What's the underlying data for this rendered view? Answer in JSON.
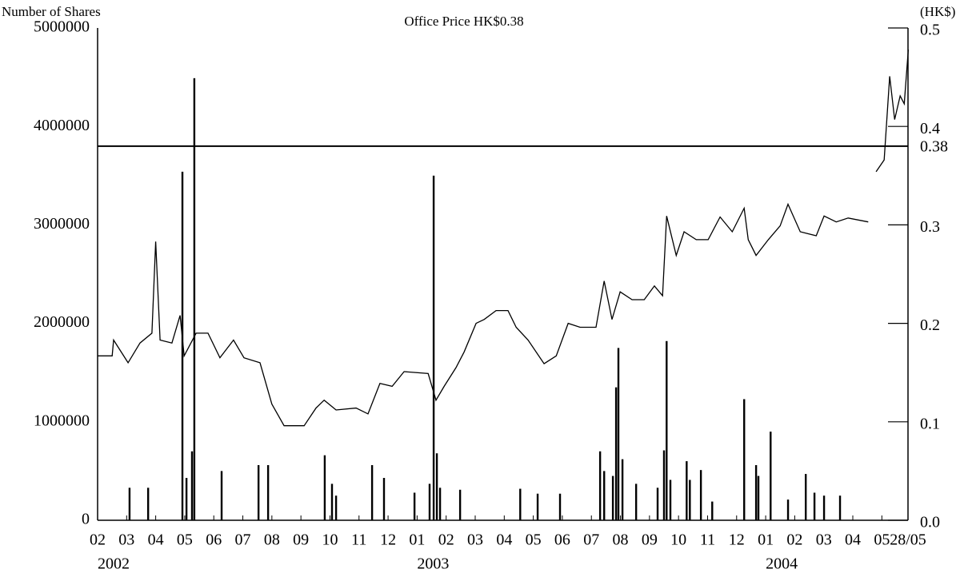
{
  "chart_data": {
    "type": "combo",
    "annotation": "Office Price HK$0.38",
    "y_label": "Number of Shares",
    "y2_label": "(HK$)",
    "xlim": [
      0,
      27.9
    ],
    "xticks": [
      {
        "value": 0,
        "label": "02"
      },
      {
        "value": 1,
        "label": "03"
      },
      {
        "value": 2,
        "label": "04"
      },
      {
        "value": 3,
        "label": "05"
      },
      {
        "value": 4,
        "label": "06"
      },
      {
        "value": 5,
        "label": "07"
      },
      {
        "value": 6,
        "label": "08"
      },
      {
        "value": 7,
        "label": "09"
      },
      {
        "value": 8,
        "label": "10"
      },
      {
        "value": 9,
        "label": "11"
      },
      {
        "value": 10,
        "label": "12"
      },
      {
        "value": 11,
        "label": "01"
      },
      {
        "value": 12,
        "label": "02"
      },
      {
        "value": 13,
        "label": "03"
      },
      {
        "value": 14,
        "label": "04"
      },
      {
        "value": 15,
        "label": "05"
      },
      {
        "value": 16,
        "label": "06"
      },
      {
        "value": 17,
        "label": "07"
      },
      {
        "value": 18,
        "label": "08"
      },
      {
        "value": 19,
        "label": "09"
      },
      {
        "value": 20,
        "label": "10"
      },
      {
        "value": 21,
        "label": "11"
      },
      {
        "value": 22,
        "label": "12"
      },
      {
        "value": 23,
        "label": "01"
      },
      {
        "value": 24,
        "label": "02"
      },
      {
        "value": 25,
        "label": "03"
      },
      {
        "value": 26,
        "label": "04"
      },
      {
        "value": 27,
        "label": "05"
      },
      {
        "value": 27.9,
        "label": "28/05"
      }
    ],
    "x_year_labels": [
      {
        "value": 0,
        "label": "2002"
      },
      {
        "value": 11,
        "label": "2003"
      },
      {
        "value": 23,
        "label": "2004"
      }
    ],
    "ylim": [
      0,
      5000000
    ],
    "yticks": [
      0,
      1000000,
      2000000,
      3000000,
      4000000,
      5000000
    ],
    "y2lim": [
      0,
      0.5
    ],
    "y2ticks": [
      {
        "value": 0,
        "label": "0.0"
      },
      0.1,
      0.2,
      0.3,
      0.4,
      0.5
    ],
    "reference_line": {
      "value": 0.38,
      "axis": "y2"
    },
    "series": [
      {
        "type": "bar",
        "color": "#000000",
        "x": [
          1.1,
          1.74,
          2.92,
          3.06,
          3.25,
          3.33,
          4.27,
          5.54,
          5.87,
          7.82,
          8.07,
          8.21,
          9.45,
          9.86,
          10.91,
          11.43,
          11.57,
          11.68,
          11.79,
          12.48,
          14.55,
          15.15,
          15.92,
          17.3,
          17.44,
          17.74,
          17.85,
          17.93,
          18.07,
          18.54,
          19.28,
          19.5,
          19.59,
          19.72,
          20.28,
          20.39,
          20.77,
          21.16,
          22.26,
          22.67,
          22.75,
          23.17,
          23.77,
          24.38,
          24.68,
          25.01,
          25.56
        ],
        "values": [
          330000,
          330000,
          3540000,
          430000,
          700000,
          4490000,
          500000,
          560000,
          560000,
          660000,
          370000,
          250000,
          560000,
          430000,
          280000,
          370000,
          3500000,
          680000,
          330000,
          310000,
          320000,
          270000,
          270000,
          700000,
          500000,
          450000,
          1350000,
          1750000,
          620000,
          370000,
          330000,
          710000,
          1820000,
          410000,
          600000,
          410000,
          510000,
          190000,
          1230000,
          560000,
          450000,
          900000,
          210000,
          470000,
          280000,
          250000,
          250000
        ]
      },
      {
        "type": "line",
        "axis": "y2",
        "color": "#000000",
        "x": [
          0,
          0.5,
          0.55,
          1.05,
          1.46,
          1.87,
          2.0,
          2.15,
          2.56,
          2.84,
          2.98,
          3.39,
          3.8,
          4.21,
          4.68,
          5.04,
          5.59,
          6.0,
          6.42,
          7.11,
          7.52,
          7.8,
          8.21,
          8.9,
          9.31,
          9.72,
          10.14,
          10.55,
          11.38,
          11.65,
          11.93,
          12.34,
          12.62,
          13.03,
          13.31,
          13.72,
          14.13,
          14.41,
          14.82,
          15.37,
          15.79,
          16.2,
          16.61,
          17.16,
          17.44,
          17.71,
          17.99,
          18.4,
          18.82,
          19.17,
          19.45,
          19.59,
          19.92,
          20.19,
          20.61,
          21.02,
          21.43,
          21.85,
          22.26,
          22.4,
          22.67,
          23.09,
          23.5,
          23.77,
          24.19,
          24.74,
          25.01,
          25.43,
          25.84,
          26.53,
          26.7,
          26.8,
          27.08,
          27.27,
          27.44,
          27.63,
          27.77,
          27.91
        ],
        "values": [
          0.167,
          0.167,
          0.183,
          0.16,
          0.18,
          0.19,
          0.283,
          0.183,
          0.18,
          0.208,
          0.167,
          0.19,
          0.19,
          0.165,
          0.183,
          0.165,
          0.16,
          0.118,
          0.096,
          0.096,
          0.114,
          0.122,
          0.112,
          0.114,
          0.108,
          0.139,
          0.136,
          0.151,
          0.149,
          0.122,
          0.136,
          0.155,
          0.171,
          0.2,
          0.204,
          0.213,
          0.213,
          0.196,
          0.183,
          0.159,
          0.167,
          0.2,
          0.196,
          0.196,
          0.243,
          0.204,
          0.232,
          0.224,
          0.224,
          0.238,
          0.228,
          0.309,
          0.269,
          0.293,
          0.285,
          0.285,
          0.308,
          0.293,
          0.317,
          0.285,
          0.269,
          0.285,
          0.299,
          0.321,
          0.293,
          0.289,
          0.309,
          0.303,
          0.307,
          0.303,
          null,
          0.354,
          0.366,
          0.451,
          0.407,
          0.431,
          0.423,
          0.478
        ]
      }
    ]
  }
}
